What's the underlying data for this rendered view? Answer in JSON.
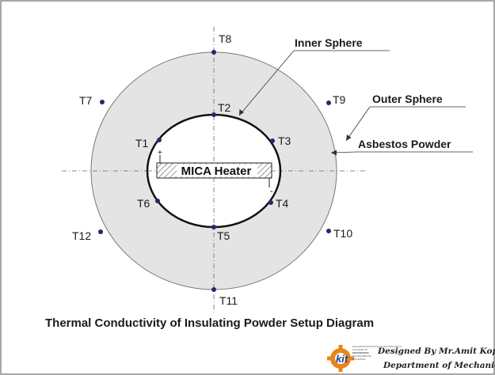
{
  "labels": {
    "inner_sphere": "Inner Sphere",
    "outer_sphere": "Outer Sphere",
    "asbestos_powder": "Asbestos Powder",
    "heater": "MICA Heater"
  },
  "thermocouples": [
    "T1",
    "T2",
    "T3",
    "T4",
    "T5",
    "T6",
    "T7",
    "T8",
    "T9",
    "T10",
    "T11",
    "T12"
  ],
  "polarity": {
    "positive": "+",
    "negative": "-"
  },
  "title": "Thermal Conductivity of Insulating Powder Setup Diagram",
  "credits": {
    "line1": "Designed By Mr.Amit Kopardekar",
    "line2": "Department of Mechanical Engg."
  },
  "logo": {
    "mark": "kit",
    "lines": [
      "KOLHAPUR INSTITUTE OF TECHNOLOGY'S",
      "COLLEGE OF",
      "ENGINEERING",
      "(AUTONOMOUS)",
      "KOLHAPUR"
    ]
  },
  "colors": {
    "powder_fill": "#e4e4e4",
    "thermocouple_dot": "#1f2a6e",
    "logo_orange": "#e8861a"
  }
}
